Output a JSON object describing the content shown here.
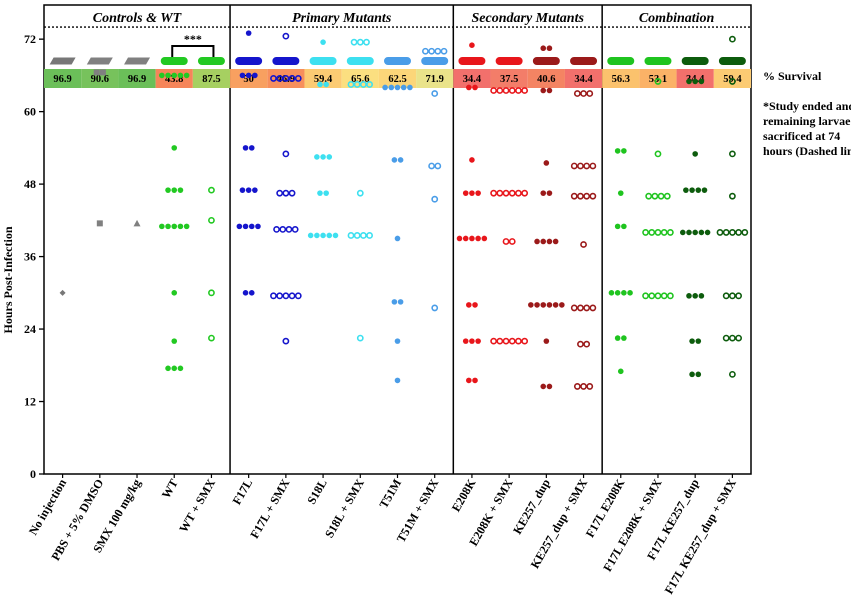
{
  "chart_data": {
    "type": "scatter",
    "ylabel": "Hours Post-Infection",
    "ylim": [
      0,
      76
    ],
    "yticks": [
      0,
      12,
      24,
      36,
      48,
      60,
      72
    ],
    "study_end_hours": 74,
    "survival_label": "% Survival",
    "note": [
      "*Study ended and",
      "remaining larvae",
      "sacrificed at 74",
      "hours (Dashed line)"
    ],
    "significance": "***",
    "panels": [
      {
        "title": "Controls & WT",
        "start": 0,
        "end": 5
      },
      {
        "title": "Primary Mutants",
        "start": 5,
        "end": 11
      },
      {
        "title": "Secondary Mutants",
        "start": 11,
        "end": 15
      },
      {
        "title": "Combination",
        "start": 15,
        "end": 19
      }
    ],
    "groups": [
      {
        "label": "No injection",
        "survival": "96.9",
        "survival_color": "#6bbf59",
        "color": "#777777",
        "marker": "diamond",
        "filled": true,
        "points": [
          {
            "y": 30,
            "n": 1
          }
        ]
      },
      {
        "label": "PBS + 5% DMSO",
        "survival": "90.6",
        "survival_color": "#77c25c",
        "color": "#808080",
        "marker": "square",
        "filled": true,
        "points": [
          {
            "y": 66.5,
            "n": 2
          },
          {
            "y": 41.5,
            "n": 1
          }
        ]
      },
      {
        "label": "SMX 100 mg/kg",
        "survival": "96.9",
        "survival_color": "#6bbf59",
        "color": "#808080",
        "marker": "triangle",
        "filled": true,
        "points": [
          {
            "y": 41.5,
            "n": 1
          }
        ]
      },
      {
        "label": "WT",
        "survival": "43.8",
        "survival_color": "#f6855a",
        "color": "#22c922",
        "marker": "circle",
        "filled": true,
        "points": [
          {
            "y": 66,
            "n": 5
          },
          {
            "y": 54,
            "n": 1
          },
          {
            "y": 47,
            "n": 3
          },
          {
            "y": 41,
            "n": 5
          },
          {
            "y": 30,
            "n": 1
          },
          {
            "y": 22,
            "n": 1
          },
          {
            "y": 17.5,
            "n": 3
          }
        ]
      },
      {
        "label": "WT + SMX",
        "survival": "87.5",
        "survival_color": "#a6d061",
        "color": "#22c922",
        "marker": "circle",
        "filled": false,
        "points": [
          {
            "y": 47,
            "n": 1
          },
          {
            "y": 42,
            "n": 1
          },
          {
            "y": 30,
            "n": 1
          },
          {
            "y": 22.5,
            "n": 1
          }
        ]
      },
      {
        "label": "F17L",
        "survival": "50",
        "survival_color": "#f8a060",
        "color": "#1515cc",
        "marker": "circle",
        "filled": true,
        "points": [
          {
            "y": 73,
            "n": 1
          },
          {
            "y": 66,
            "n": 3
          },
          {
            "y": 54,
            "n": 2
          },
          {
            "y": 47,
            "n": 3
          },
          {
            "y": 41,
            "n": 4
          },
          {
            "y": 30,
            "n": 2
          }
        ]
      },
      {
        "label": "F17L + SMX",
        "survival": "46.9",
        "survival_color": "#f78f5c",
        "color": "#1515cc",
        "marker": "circle",
        "filled": false,
        "points": [
          {
            "y": 72.5,
            "n": 1
          },
          {
            "y": 65.5,
            "n": 5
          },
          {
            "y": 53,
            "n": 1
          },
          {
            "y": 46.5,
            "n": 3
          },
          {
            "y": 40.5,
            "n": 4
          },
          {
            "y": 29.5,
            "n": 5
          },
          {
            "y": 22,
            "n": 1
          }
        ]
      },
      {
        "label": "S18L",
        "survival": "59.4",
        "survival_color": "#fccb73",
        "color": "#3de0f0",
        "marker": "circle",
        "filled": true,
        "points": [
          {
            "y": 71.5,
            "n": 1
          },
          {
            "y": 64.5,
            "n": 2
          },
          {
            "y": 52.5,
            "n": 3
          },
          {
            "y": 46.5,
            "n": 2
          },
          {
            "y": 39.5,
            "n": 5
          }
        ]
      },
      {
        "label": "S18L + SMX",
        "survival": "65.6",
        "survival_color": "#fbdf80",
        "color": "#3de0f0",
        "marker": "circle",
        "filled": false,
        "points": [
          {
            "y": 71.5,
            "n": 3
          },
          {
            "y": 64.5,
            "n": 4
          },
          {
            "y": 46.5,
            "n": 1
          },
          {
            "y": 39.5,
            "n": 4
          },
          {
            "y": 22.5,
            "n": 1
          }
        ]
      },
      {
        "label": "T51M",
        "survival": "62.5",
        "survival_color": "#fcd679",
        "color": "#4a9de8",
        "marker": "circle",
        "filled": true,
        "points": [
          {
            "y": 64,
            "n": 5
          },
          {
            "y": 52,
            "n": 2
          },
          {
            "y": 39,
            "n": 1
          },
          {
            "y": 28.5,
            "n": 2
          },
          {
            "y": 22,
            "n": 1
          },
          {
            "y": 15.5,
            "n": 1
          }
        ]
      },
      {
        "label": "T51M + SMX",
        "survival": "71.9",
        "survival_color": "#eae38a",
        "color": "#4a9de8",
        "marker": "circle",
        "filled": false,
        "points": [
          {
            "y": 70,
            "n": 4
          },
          {
            "y": 63,
            "n": 1
          },
          {
            "y": 51,
            "n": 2
          },
          {
            "y": 45.5,
            "n": 1
          },
          {
            "y": 27.5,
            "n": 1
          }
        ]
      },
      {
        "label": "E208K",
        "survival": "34.4",
        "survival_color": "#f2706c",
        "color": "#e8161b",
        "marker": "circle",
        "filled": true,
        "points": [
          {
            "y": 71,
            "n": 1
          },
          {
            "y": 64,
            "n": 2
          },
          {
            "y": 52,
            "n": 1
          },
          {
            "y": 46.5,
            "n": 3
          },
          {
            "y": 39,
            "n": 5
          },
          {
            "y": 28,
            "n": 2
          },
          {
            "y": 22,
            "n": 3
          },
          {
            "y": 15.5,
            "n": 2
          }
        ]
      },
      {
        "label": "E208K + SMX",
        "survival": "37.5",
        "survival_color": "#f37d69",
        "color": "#e8161b",
        "marker": "circle",
        "filled": false,
        "points": [
          {
            "y": 63.5,
            "n": 6
          },
          {
            "y": 46.5,
            "n": 6
          },
          {
            "y": 38.5,
            "n": 2
          },
          {
            "y": 22,
            "n": 6
          }
        ]
      },
      {
        "label": "KE257_dup",
        "survival": "40.6",
        "survival_color": "#f48463",
        "color": "#9b1a1a",
        "marker": "circle",
        "filled": true,
        "points": [
          {
            "y": 70.5,
            "n": 2
          },
          {
            "y": 63.5,
            "n": 2
          },
          {
            "y": 51.5,
            "n": 1
          },
          {
            "y": 46.5,
            "n": 2
          },
          {
            "y": 38.5,
            "n": 4
          },
          {
            "y": 28,
            "n": 6
          },
          {
            "y": 22,
            "n": 1
          },
          {
            "y": 14.5,
            "n": 2
          }
        ]
      },
      {
        "label": "KE257_dup + SMX",
        "survival": "34.4",
        "survival_color": "#f2706c",
        "color": "#9b1a1a",
        "marker": "circle",
        "filled": false,
        "points": [
          {
            "y": 63,
            "n": 3
          },
          {
            "y": 51,
            "n": 4
          },
          {
            "y": 46,
            "n": 4
          },
          {
            "y": 38,
            "n": 1
          },
          {
            "y": 27.5,
            "n": 4
          },
          {
            "y": 21.5,
            "n": 2
          },
          {
            "y": 14.5,
            "n": 3
          }
        ]
      },
      {
        "label": "F17L E208K",
        "survival": "56.3",
        "survival_color": "#fbc26d",
        "color": "#1fc41f",
        "marker": "circle",
        "filled": true,
        "points": [
          {
            "y": 53.5,
            "n": 2
          },
          {
            "y": 46.5,
            "n": 1
          },
          {
            "y": 41,
            "n": 2
          },
          {
            "y": 30,
            "n": 4
          },
          {
            "y": 22.5,
            "n": 2
          },
          {
            "y": 17,
            "n": 1
          }
        ]
      },
      {
        "label": "F17L E208K + SMX",
        "survival": "53.1",
        "survival_color": "#fbb267",
        "color": "#1fc41f",
        "marker": "circle",
        "filled": false,
        "points": [
          {
            "y": 65,
            "n": 1
          },
          {
            "y": 53,
            "n": 1
          },
          {
            "y": 46,
            "n": 4
          },
          {
            "y": 40,
            "n": 5
          },
          {
            "y": 29.5,
            "n": 5
          }
        ]
      },
      {
        "label": "F17L KE257_dup",
        "survival": "34.4",
        "survival_color": "#f2706c",
        "color": "#0d5c0d",
        "marker": "circle",
        "filled": true,
        "points": [
          {
            "y": 65,
            "n": 3
          },
          {
            "y": 53,
            "n": 1
          },
          {
            "y": 47,
            "n": 4
          },
          {
            "y": 40,
            "n": 5
          },
          {
            "y": 29.5,
            "n": 3
          },
          {
            "y": 22,
            "n": 2
          },
          {
            "y": 16.5,
            "n": 2
          }
        ]
      },
      {
        "label": "F17L KE257_dup + SMX",
        "survival": "59.4",
        "survival_color": "#fccb73",
        "color": "#0d5c0d",
        "marker": "circle",
        "filled": false,
        "points": [
          {
            "y": 72,
            "n": 1
          },
          {
            "y": 65,
            "n": 1
          },
          {
            "y": 53,
            "n": 1
          },
          {
            "y": 46,
            "n": 1
          },
          {
            "y": 40,
            "n": 5
          },
          {
            "y": 29.5,
            "n": 3
          },
          {
            "y": 22.5,
            "n": 3
          },
          {
            "y": 16.5,
            "n": 1
          }
        ]
      }
    ]
  }
}
